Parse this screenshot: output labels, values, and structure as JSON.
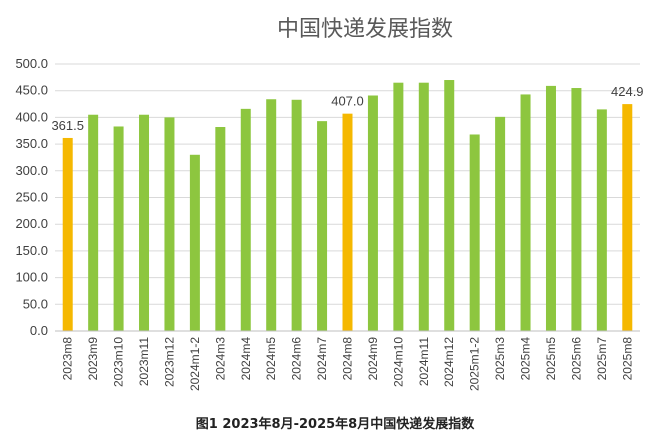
{
  "chart_data": {
    "type": "bar",
    "title": "中国快递发展指数",
    "caption": "图1 2023年8月-2025年8月中国快递发展指数",
    "categories": [
      "2023m8",
      "2023m9",
      "2023m10",
      "2023m11",
      "2023m12",
      "2024m1-2",
      "2024m3",
      "2024m4",
      "2024m5",
      "2024m6",
      "2024m7",
      "2024m8",
      "2024m9",
      "2024m10",
      "2024m11",
      "2024m12",
      "2025m1-2",
      "2025m3",
      "2025m4",
      "2025m5",
      "2025m6",
      "2025m7",
      "2025m8"
    ],
    "values": [
      361.5,
      405,
      383,
      405,
      400,
      330,
      382,
      416,
      434,
      433,
      393,
      407.0,
      441,
      465,
      465,
      470,
      368,
      401,
      443,
      459,
      455,
      415,
      424.9
    ],
    "highlight_indices": [
      0,
      11,
      22
    ],
    "data_labels": [
      {
        "index": 0,
        "text": "361.5"
      },
      {
        "index": 11,
        "text": "407.0"
      },
      {
        "index": 22,
        "text": "424.9"
      }
    ],
    "y_ticks": [
      "0.0",
      "50.0",
      "100.0",
      "150.0",
      "200.0",
      "250.0",
      "300.0",
      "350.0",
      "400.0",
      "450.0",
      "500.0"
    ],
    "ylim": [
      0,
      500
    ],
    "grid": true,
    "colors": {
      "bar": "#8DC63F",
      "highlight": "#F5B800",
      "grid": "#d9d9d9"
    }
  }
}
